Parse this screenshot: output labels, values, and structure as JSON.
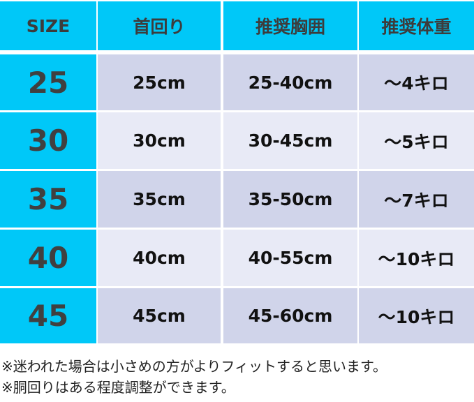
{
  "colors": {
    "header": "#00c8f8",
    "row_odd": "#d0d4ea",
    "row_even": "#e8eaf6"
  },
  "headers": [
    "SIZE",
    "首回り",
    "推奨胸囲",
    "推奨体重"
  ],
  "rows": [
    [
      "25",
      "25cm",
      "25-40cm",
      "〜4キロ"
    ],
    [
      "30",
      "30cm",
      "30-45cm",
      "〜5キロ"
    ],
    [
      "35",
      "35cm",
      "35-50cm",
      "〜7キロ"
    ],
    [
      "40",
      "40cm",
      "40-55cm",
      "〜10キロ"
    ],
    [
      "45",
      "45cm",
      "45-60cm",
      "〜10キロ"
    ]
  ],
  "notes": [
    "※迷われた場合は小さめの方がよりフィットすると思います。",
    "※胴回りはある程度調整ができます。"
  ]
}
